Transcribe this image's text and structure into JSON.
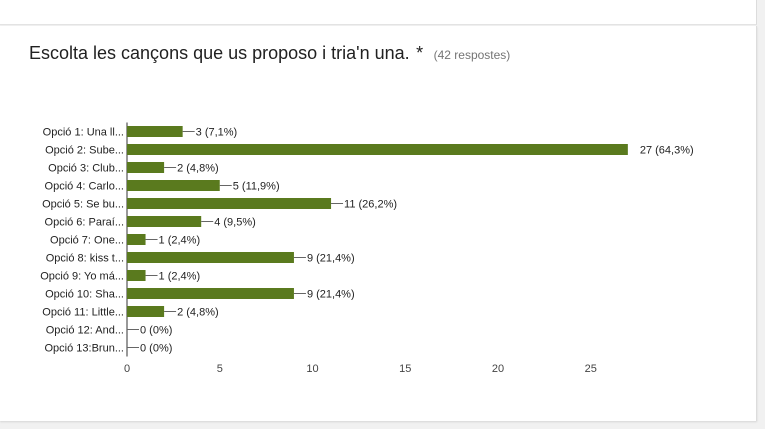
{
  "question": {
    "title": "Escolta les cançons que us proposo i tria'n una.",
    "required_marker": "*",
    "response_count": "(42 respostes)"
  },
  "chart_data": {
    "type": "bar",
    "orientation": "horizontal",
    "categories": [
      "Opció 1: Una ll...",
      "Opció 2: Sube...",
      "Opció 3: Club...",
      "Opció 4: Carlo...",
      "Opció 5: Se bu...",
      "Opció 6: Paraí...",
      "Opció 7: One...",
      "Opció 8: kiss t...",
      "Opció 9: Yo má...",
      "Opció 10: Sha...",
      "Opció 11: Little...",
      "Opció 12: And...",
      "Opció 13:Brun..."
    ],
    "values": [
      3,
      27,
      2,
      5,
      11,
      4,
      1,
      9,
      1,
      9,
      2,
      0,
      0
    ],
    "value_labels": [
      "3 (7,1%)",
      "27 (64,3%)",
      "2 (4,8%)",
      "5 (11,9%)",
      "11 (26,2%)",
      "4 (9,5%)",
      "1 (2,4%)",
      "9 (21,4%)",
      "1 (2,4%)",
      "9 (21,4%)",
      "2 (4,8%)",
      "0 (0%)",
      "0 (0%)"
    ],
    "xticks": [
      "0",
      "5",
      "10",
      "15",
      "20",
      "25"
    ],
    "xlim": [
      0,
      28
    ],
    "bar_color": "#5a7a1e",
    "grid": false
  }
}
